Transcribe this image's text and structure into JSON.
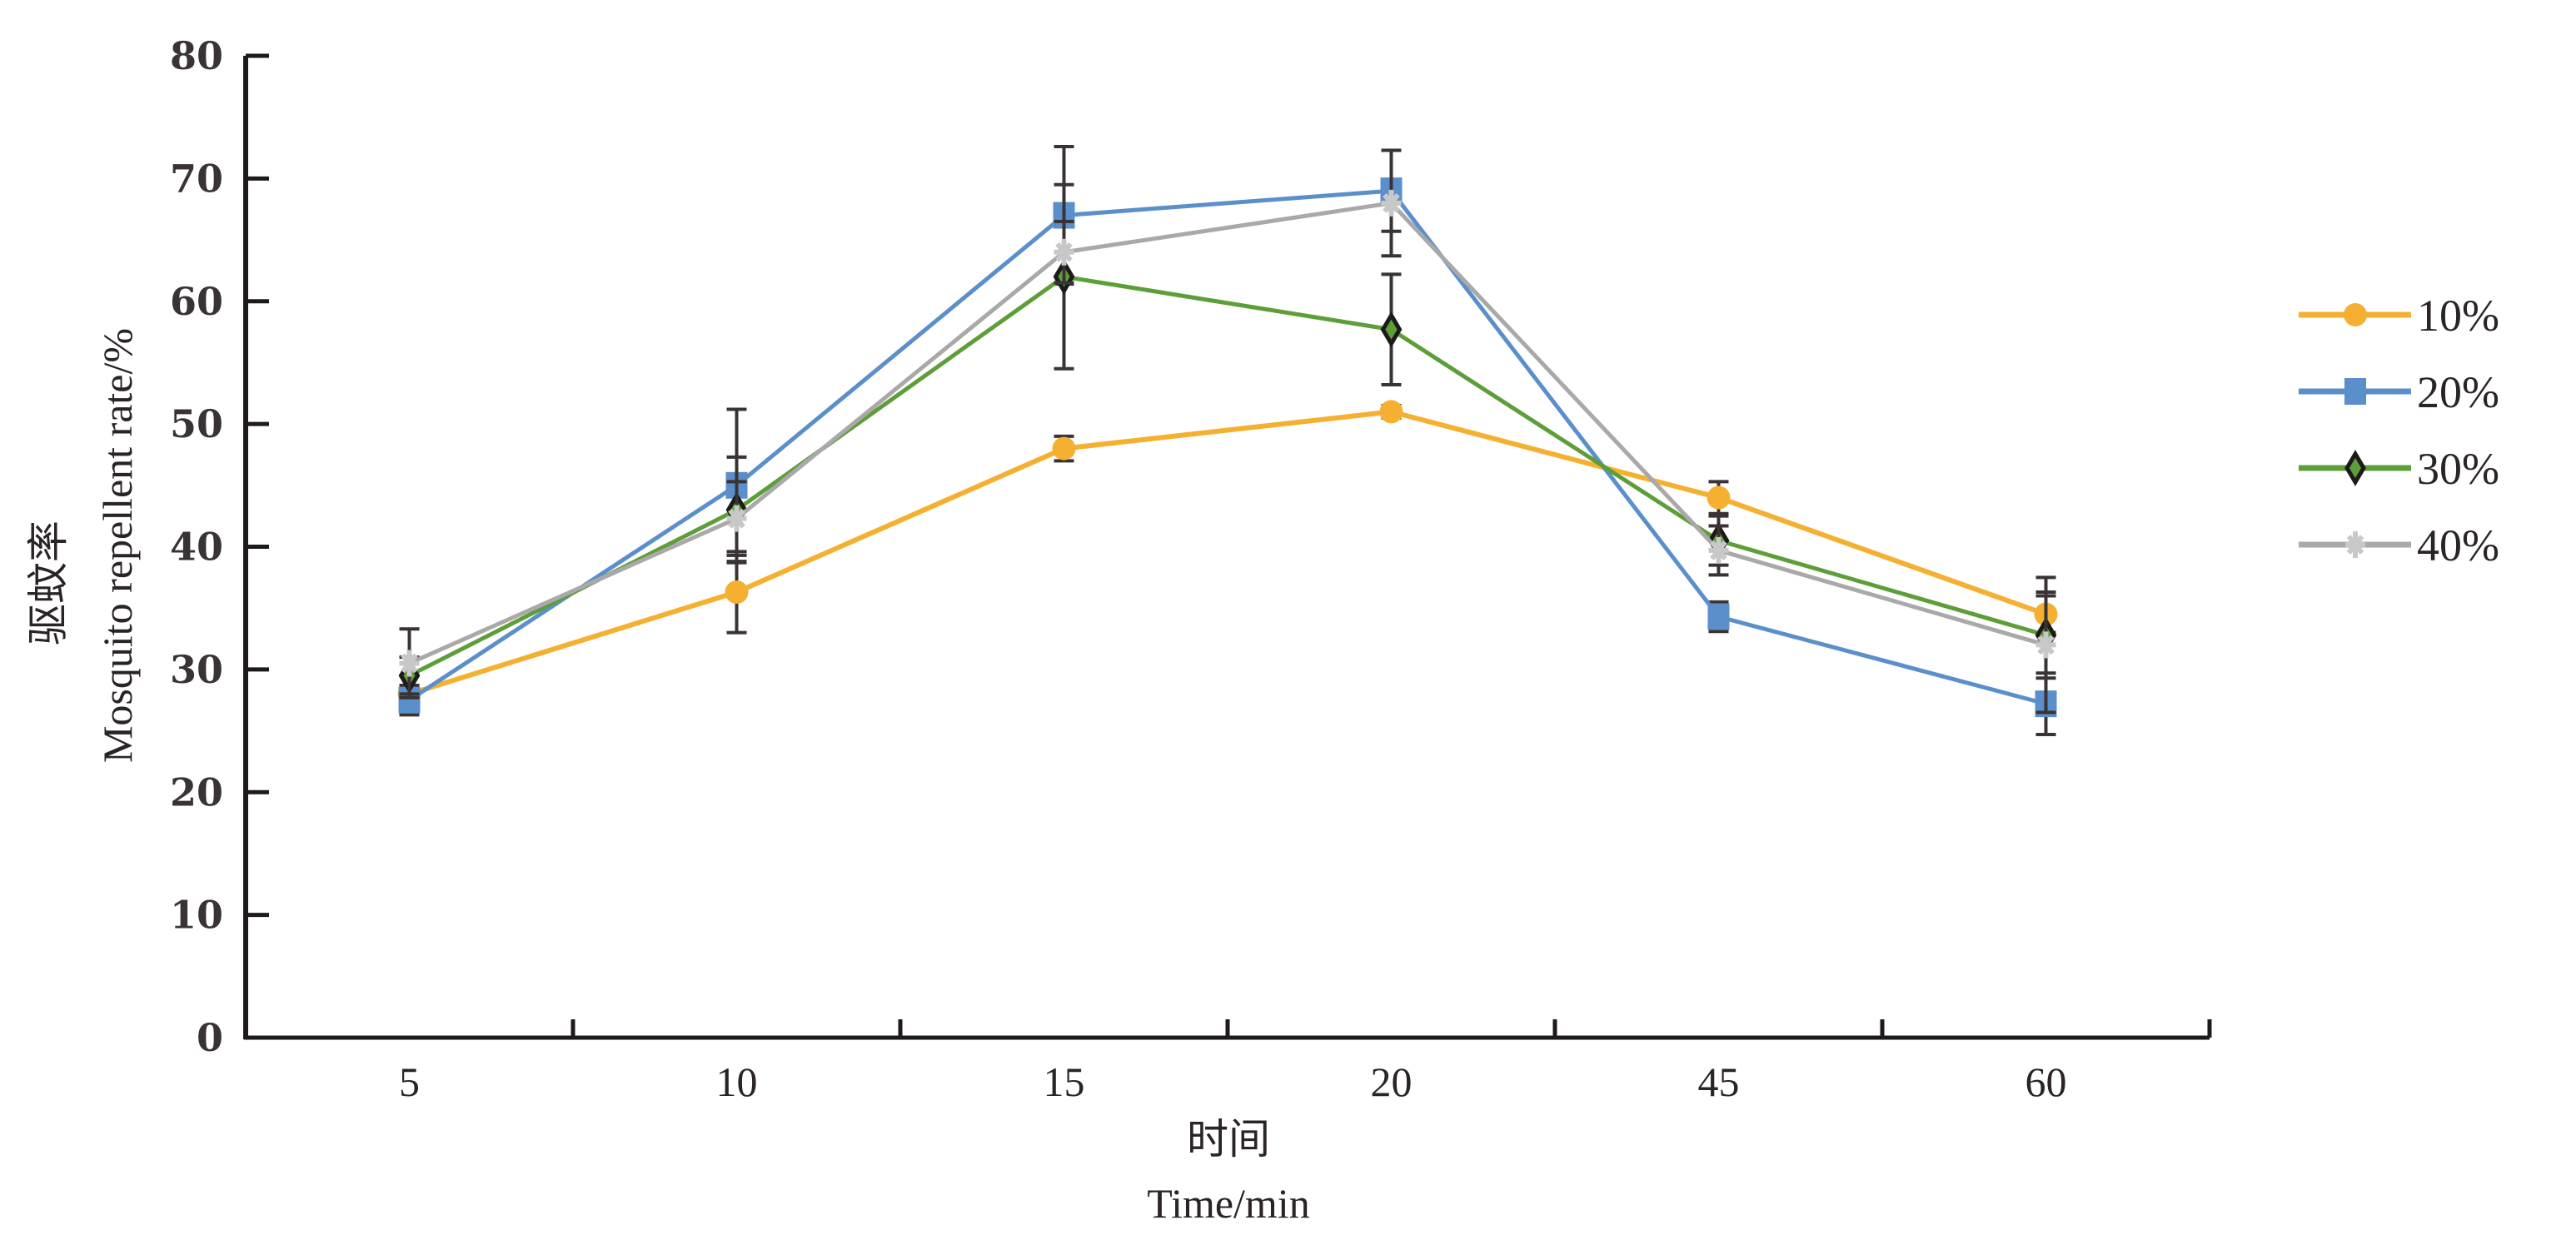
{
  "chart_data": {
    "type": "line",
    "title": "",
    "xlabel_cn": "时间",
    "xlabel": "Time/min",
    "ylabel_cn": "驱蚊率",
    "ylabel": "Mosquito repellent rate/%",
    "ylim": [
      0,
      80
    ],
    "yticks": [
      "0",
      "10",
      "20",
      "30",
      "40",
      "50",
      "60",
      "70",
      "80"
    ],
    "categories": [
      "5",
      "10",
      "15",
      "20",
      "45",
      "60"
    ],
    "legend_position": "right",
    "grid": false,
    "series": [
      {
        "name": "10%",
        "color": "#f5b031",
        "marker": "circle",
        "values": [
          28,
          36.3,
          48,
          51,
          44,
          34.5
        ],
        "errors": [
          1.5,
          3.3,
          1,
          0.5,
          1.3,
          1.5
        ]
      },
      {
        "name": "20%",
        "color": "#5b8fcb",
        "marker": "square",
        "values": [
          27.5,
          45,
          67,
          69,
          34.3,
          27.2
        ],
        "errors": [
          1.2,
          6.2,
          5.6,
          3.3,
          1.2,
          2.5
        ]
      },
      {
        "name": "30%",
        "color": "#5e9e38",
        "marker": "diamond",
        "values": [
          29.5,
          43,
          62,
          57.7,
          40.5,
          32.8
        ],
        "errors": [
          1.5,
          4.3,
          7.5,
          4.5,
          2,
          3.5
        ]
      },
      {
        "name": "40%",
        "color": "#a9a9a9",
        "marker": "star",
        "values": [
          30.5,
          42.3,
          64,
          68,
          39.7,
          32
        ],
        "errors": [
          2.8,
          3,
          2.5,
          4.3,
          2,
          5.5
        ]
      }
    ]
  }
}
